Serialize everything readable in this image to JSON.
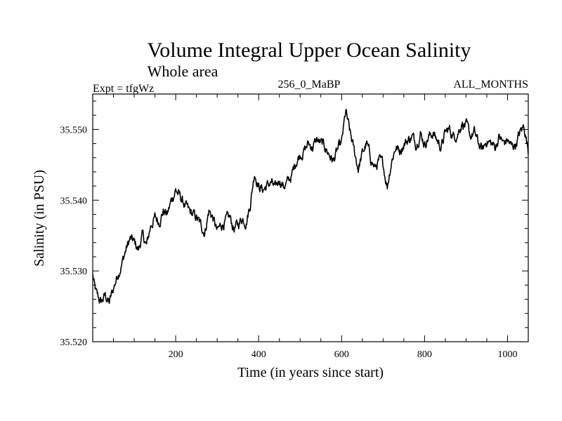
{
  "chart_data": {
    "type": "line",
    "title": "Volume Integral Upper Ocean Salinity",
    "subtitle": "Whole area",
    "experiment_label": "Expt = tfgWz",
    "run_label": "256_0_MaBP",
    "period_label": "ALL_MONTHS",
    "xlabel": "Time (in years since start)",
    "ylabel": "Salinity (in PSU)",
    "xlim": [
      0,
      1050
    ],
    "ylim": [
      35.52,
      35.555
    ],
    "x_ticks": [
      200,
      400,
      600,
      800,
      1000
    ],
    "x_tick_labels": [
      "200",
      "400",
      "600",
      "800",
      "1000"
    ],
    "y_ticks": [
      35.52,
      35.53,
      35.54,
      35.55
    ],
    "y_tick_labels": [
      "35.520",
      "35.530",
      "35.540",
      "35.550"
    ],
    "series": [
      {
        "name": "Salinity",
        "color": "#000000",
        "x": [
          0,
          5,
          10,
          20,
          30,
          40,
          50,
          60,
          70,
          80,
          90,
          100,
          110,
          120,
          130,
          140,
          150,
          160,
          170,
          180,
          190,
          200,
          210,
          220,
          230,
          240,
          250,
          260,
          270,
          280,
          290,
          300,
          310,
          320,
          330,
          340,
          350,
          360,
          370,
          380,
          390,
          400,
          410,
          420,
          430,
          440,
          450,
          460,
          470,
          480,
          490,
          500,
          510,
          520,
          530,
          540,
          550,
          560,
          570,
          580,
          590,
          600,
          610,
          620,
          630,
          640,
          650,
          660,
          670,
          680,
          690,
          700,
          710,
          720,
          730,
          740,
          750,
          760,
          770,
          780,
          790,
          800,
          810,
          820,
          830,
          840,
          850,
          860,
          870,
          880,
          890,
          900,
          910,
          920,
          930,
          940,
          950,
          960,
          970,
          980,
          990,
          1000,
          1010,
          1020,
          1030,
          1040,
          1050
        ],
        "values": [
          35.5295,
          35.5275,
          35.5265,
          35.5255,
          35.5265,
          35.5255,
          35.5275,
          35.5295,
          35.531,
          35.533,
          35.5345,
          35.534,
          35.533,
          35.535,
          35.5335,
          35.5365,
          35.5375,
          35.537,
          35.5385,
          35.538,
          35.54,
          35.5415,
          35.5405,
          35.5395,
          35.5385,
          35.538,
          35.5375,
          35.5365,
          35.5355,
          35.5385,
          35.5375,
          35.5355,
          35.5365,
          35.537,
          35.5375,
          35.536,
          35.5365,
          35.5375,
          35.537,
          35.5395,
          35.544,
          35.542,
          35.5415,
          35.542,
          35.5425,
          35.5415,
          35.543,
          35.542,
          35.5425,
          35.5435,
          35.5455,
          35.5465,
          35.547,
          35.548,
          35.5475,
          35.5485,
          35.548,
          35.5475,
          35.5465,
          35.5455,
          35.547,
          35.548,
          35.5525,
          35.5495,
          35.547,
          35.5445,
          35.5465,
          35.548,
          35.546,
          35.5445,
          35.5455,
          35.545,
          35.542,
          35.5455,
          35.5475,
          35.547,
          35.548,
          35.5485,
          35.549,
          35.548,
          35.5495,
          35.548,
          35.549,
          35.5495,
          35.5485,
          35.5475,
          35.5495,
          35.55,
          35.549,
          35.5495,
          35.551,
          35.5505,
          35.549,
          35.5495,
          35.548,
          35.547,
          35.5485,
          35.548,
          35.5475,
          35.549,
          35.548,
          35.5485,
          35.5475,
          35.548,
          35.5495,
          35.5505,
          35.547
        ]
      }
    ]
  }
}
